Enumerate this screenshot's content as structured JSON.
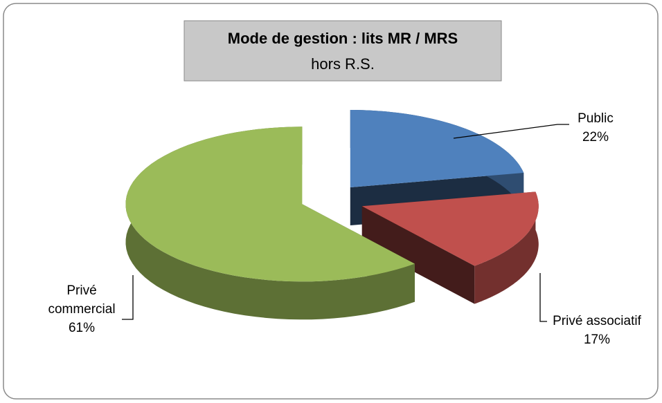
{
  "chart_data": {
    "type": "pie3d",
    "title": "Mode de gestion : lits MR / MRS",
    "subtitle": "hors R.S.",
    "categories": [
      "Public",
      "Privé associatif",
      "Privé commercial"
    ],
    "values": [
      22,
      17,
      61
    ],
    "value_labels": [
      "22%",
      "17%",
      "61%"
    ],
    "colors": [
      "#4f81bd",
      "#c0504d",
      "#9bbb59"
    ]
  }
}
